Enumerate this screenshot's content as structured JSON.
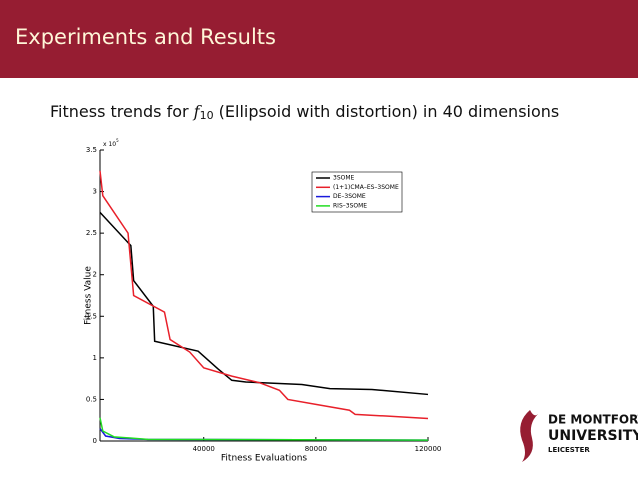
{
  "header": {
    "title": "Experiments and Results"
  },
  "subtitle": {
    "before": "Fitness trends for ",
    "f": "f",
    "sub": "10",
    "after": " (Ellipsoid with distortion) in 40 dimensions"
  },
  "chart_data": {
    "type": "line",
    "xlabel": "Fitness Evaluations",
    "ylabel": "Fitness Value",
    "y_multiplier": {
      "base": "x 10",
      "exp": "5"
    },
    "xlim": [
      3000,
      120000
    ],
    "xticks": [
      40000,
      80000,
      120000
    ],
    "ylim": [
      0,
      3.5
    ],
    "yticks": [
      0,
      0.5,
      1,
      1.5,
      2,
      2.5,
      3,
      3.5
    ],
    "legend": "upper right",
    "series": [
      {
        "name": "3SOME",
        "color": "#000000",
        "x": [
          3000,
          14000,
          15000,
          22000,
          22500,
          38000,
          45000,
          50000,
          55000,
          75000,
          85000,
          100000,
          120000
        ],
        "values": [
          2.75,
          2.35,
          1.93,
          1.62,
          1.2,
          1.08,
          0.87,
          0.73,
          0.71,
          0.68,
          0.63,
          0.62,
          0.56
        ]
      },
      {
        "name": "(1+1)CMA–ES–3SOME",
        "color": "#e8202a",
        "x": [
          3000,
          4000,
          13000,
          15000,
          26000,
          28000,
          35000,
          40000,
          50000,
          60000,
          67000,
          70000,
          80000,
          92000,
          94000,
          105000,
          120000
        ],
        "values": [
          3.25,
          2.95,
          2.5,
          1.75,
          1.55,
          1.22,
          1.07,
          0.88,
          0.78,
          0.7,
          0.61,
          0.5,
          0.44,
          0.37,
          0.32,
          0.3,
          0.27
        ]
      },
      {
        "name": "DE–3SOME",
        "color": "#1a1adc",
        "x": [
          3000,
          5000,
          10000,
          20000,
          120000
        ],
        "values": [
          0.15,
          0.06,
          0.03,
          0.02,
          0.01
        ]
      },
      {
        "name": "RIS–3SOME",
        "color": "#22dd22",
        "x": [
          3000,
          4000,
          8000,
          20000,
          120000
        ],
        "values": [
          0.28,
          0.12,
          0.05,
          0.02,
          0.01
        ]
      }
    ]
  },
  "logo": {
    "line1": "DE MONTFORT",
    "line2": "UNIVERSITY",
    "line3": "LEICESTER"
  }
}
